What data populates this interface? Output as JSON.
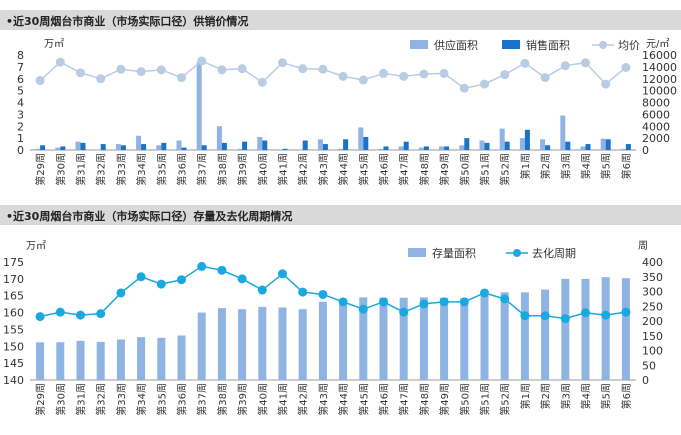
{
  "page": {
    "background": "#ffffff"
  },
  "chart_data": [
    {
      "type": "bar",
      "title": "•近30周烟台市商业（市场实际口径）供销价情况",
      "y_left_unit": "万㎡",
      "y_right_unit": "元/㎡",
      "ylim_left": [
        0,
        8
      ],
      "ylim_right": [
        0,
        16000
      ],
      "yticks_left": [
        0,
        1,
        2,
        3,
        4,
        5,
        6,
        7,
        8
      ],
      "yticks_right": [
        0,
        2000,
        4000,
        6000,
        8000,
        10000,
        12000,
        14000,
        16000
      ],
      "categories": [
        "第29周",
        "第30周",
        "第31周",
        "第32周",
        "第33周",
        "第34周",
        "第35周",
        "第36周",
        "第37周",
        "第38周",
        "第39周",
        "第40周",
        "第41周",
        "第42周",
        "第43周",
        "第44周",
        "第45周",
        "第46周",
        "第47周",
        "第48周",
        "第49周",
        "第50周",
        "第51周",
        "第52周",
        "第1周",
        "第2周",
        "第3周",
        "第4周",
        "第5周",
        "第6周"
      ],
      "series": [
        {
          "name": "供应面积",
          "kind": "bar",
          "axis": "left",
          "color": "#8fb4e3",
          "values": [
            0.1,
            0.2,
            0.7,
            0.05,
            0.5,
            1.2,
            0.4,
            0.8,
            7.4,
            2.0,
            0.1,
            1.1,
            0.05,
            0.05,
            0.9,
            0.1,
            1.9,
            0.1,
            0.3,
            0.2,
            0.3,
            0.4,
            0.8,
            1.8,
            1.0,
            0.9,
            2.9,
            0.3,
            0.95,
            0.1
          ]
        },
        {
          "name": "销售面积",
          "kind": "bar",
          "axis": "left",
          "color": "#1a73c8",
          "values": [
            0.4,
            0.3,
            0.6,
            0.5,
            0.4,
            0.5,
            0.6,
            0.2,
            0.4,
            0.6,
            0.7,
            0.8,
            0.1,
            0.8,
            0.5,
            0.9,
            1.1,
            0.3,
            0.7,
            0.3,
            0.3,
            1.0,
            0.6,
            0.7,
            1.7,
            0.4,
            0.7,
            0.5,
            0.9,
            0.5
          ]
        },
        {
          "name": "均价",
          "kind": "line",
          "axis": "right",
          "color": "#b8cce4",
          "values": [
            11700,
            14800,
            13000,
            12000,
            13600,
            13200,
            13500,
            12200,
            15000,
            13500,
            13700,
            11400,
            14700,
            13700,
            13600,
            12400,
            11800,
            12900,
            12400,
            12800,
            12900,
            10400,
            11100,
            12700,
            14600,
            12200,
            14200,
            14700,
            11100,
            13900
          ]
        }
      ],
      "legend": "top-right"
    },
    {
      "type": "bar",
      "title": "•近30周烟台市商业（市场实际口径）存量及去化周期情况",
      "y_left_unit": "万㎡",
      "y_right_unit": "周",
      "ylim_left": [
        140,
        175
      ],
      "ylim_right": [
        0,
        400
      ],
      "yticks_left": [
        140,
        145,
        150,
        155,
        160,
        165,
        170,
        175
      ],
      "yticks_right": [
        0,
        50,
        100,
        150,
        200,
        250,
        300,
        350,
        400
      ],
      "categories": [
        "第29周",
        "第30周",
        "第31周",
        "第32周",
        "第33周",
        "第34周",
        "第35周",
        "第36周",
        "第37周",
        "第38周",
        "第39周",
        "第40周",
        "第41周",
        "第42周",
        "第43周",
        "第44周",
        "第45周",
        "第46周",
        "第47周",
        "第48周",
        "第49周",
        "第50周",
        "第51周",
        "第52周",
        "第1周",
        "第2周",
        "第3周",
        "第4周",
        "第5周",
        "第6周"
      ],
      "series": [
        {
          "name": "存量面积",
          "kind": "bar",
          "axis": "left",
          "color": "#8fb4e3",
          "values": [
            151.2,
            151.2,
            151.6,
            151.3,
            152.0,
            152.7,
            152.5,
            153.2,
            160.0,
            161.3,
            161.0,
            161.7,
            161.5,
            161.0,
            163.2,
            164.0,
            164.5,
            164.4,
            164.4,
            164.5,
            164.4,
            164.2,
            165.0,
            166.0,
            166.0,
            166.8,
            170.0,
            170.0,
            170.5,
            170.2
          ]
        },
        {
          "name": "去化周期",
          "kind": "line",
          "axis": "right",
          "color": "#1aa8e0",
          "values": [
            215,
            230,
            220,
            225,
            295,
            350,
            325,
            340,
            385,
            372,
            343,
            305,
            360,
            298,
            290,
            265,
            240,
            265,
            230,
            258,
            265,
            265,
            295,
            275,
            218,
            218,
            208,
            228,
            220,
            230
          ]
        }
      ],
      "legend": "top-right"
    }
  ]
}
